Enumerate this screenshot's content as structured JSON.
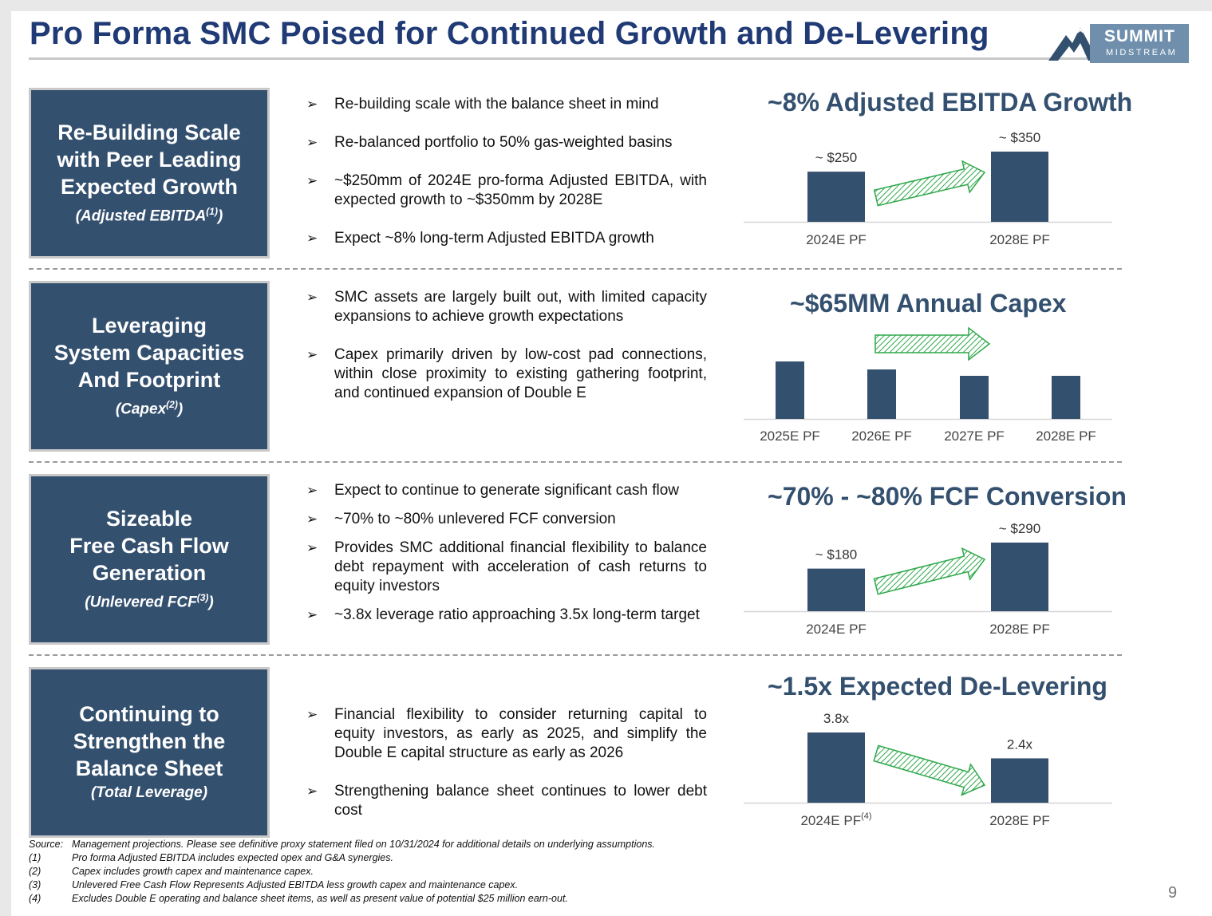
{
  "title": "Pro Forma SMC Poised for Continued Growth and De-Levering",
  "logo": {
    "line1": "SUMMIT",
    "line2": "MIDSTREAM"
  },
  "sections": [
    {
      "label": {
        "lines": [
          "Re-Building Scale",
          "with Peer Leading",
          "Expected Growth"
        ],
        "sub": "(Adjusted EBITDA",
        "sup": "(1)",
        "sub_end": ")"
      },
      "bullets": [
        "Re-building scale with the balance sheet in mind",
        "Re-balanced portfolio to 50% gas-weighted basins",
        "~$250mm of 2024E pro-forma Adjusted EBITDA, with expected growth to ~$350mm by 2028E",
        "Expect ~8% long-term Adjusted EBITDA growth"
      ]
    },
    {
      "label": {
        "lines": [
          "Leveraging",
          "System Capacities",
          "And Footprint"
        ],
        "sub": "(Capex",
        "sup": "(2)",
        "sub_end": ")"
      },
      "bullets": [
        "SMC assets are largely built out, with limited capacity expansions to achieve growth expectations",
        "Capex primarily driven by low-cost pad connections, within close proximity to existing gathering footprint, and continued expansion of Double E"
      ]
    },
    {
      "label": {
        "lines": [
          "Sizeable",
          "Free Cash Flow",
          "Generation"
        ],
        "sub": "(Unlevered FCF",
        "sup": "(3)",
        "sub_end": ")"
      },
      "bullets": [
        "Expect to continue to generate significant cash flow",
        "~70% to ~80% unlevered FCF conversion",
        "Provides SMC additional financial flexibility to balance debt repayment with acceleration of cash returns to equity investors",
        "~3.8x leverage ratio approaching 3.5x long-term target"
      ]
    },
    {
      "label": {
        "lines": [
          "Continuing to",
          "Strengthen the",
          "Balance Sheet"
        ],
        "sub": "(Total Leverage)",
        "sup": "",
        "sub_end": ""
      },
      "bullets": [
        "Financial flexibility to consider returning capital to equity investors, as early as 2025, and simplify the Double E capital structure as early as 2026",
        "Strengthening balance sheet continues to lower debt cost"
      ]
    }
  ],
  "chart_data": [
    {
      "type": "bar",
      "title": "~8% Adjusted EBITDA Growth",
      "categories": [
        "2024E PF",
        "2028E PF"
      ],
      "values": [
        250,
        350
      ],
      "data_labels": [
        "~ $250",
        "~ $350"
      ],
      "arrow_color": "#2ea84a"
    },
    {
      "type": "bar",
      "title": "~$65MM Annual Capex",
      "categories": [
        "2025E PF",
        "2026E PF",
        "2027E PF",
        "2028E PF"
      ],
      "values": [
        72,
        62,
        54,
        54
      ],
      "data_labels": [],
      "arrow_color": "#2ea84a"
    },
    {
      "type": "bar",
      "title": "~70% - ~80% FCF Conversion",
      "categories": [
        "2024E PF",
        "2028E PF"
      ],
      "values": [
        180,
        290
      ],
      "data_labels": [
        "~ $180",
        "~ $290"
      ],
      "arrow_color": "#2ea84a"
    },
    {
      "type": "bar",
      "title": "~1.5x Expected De-Levering",
      "categories": [
        "2024E PF",
        "2028E PF"
      ],
      "category_sups": [
        "(4)",
        ""
      ],
      "values": [
        3.8,
        2.4
      ],
      "data_labels": [
        "3.8x",
        "2.4x"
      ],
      "arrow_color": "#2ea84a"
    }
  ],
  "footnotes": [
    {
      "tag": "Source:",
      "text": "Management projections. Please see definitive proxy statement filed on 10/31/2024 for additional details on underlying assumptions."
    },
    {
      "tag": "(1)",
      "text": "Pro forma Adjusted EBITDA includes expected opex and G&A synergies."
    },
    {
      "tag": "(2)",
      "text": "Capex includes growth capex and maintenance capex."
    },
    {
      "tag": "(3)",
      "text": "Unlevered Free Cash Flow Represents Adjusted EBITDA less growth capex and maintenance capex."
    },
    {
      "tag": "(4)",
      "text": "Excludes Double E operating and balance sheet items, as well as present value of potential $25 million earn-out."
    }
  ],
  "page_number": "9",
  "colors": {
    "bar": "#34506f",
    "title": "#1f3a75",
    "label_bg": "#34506f",
    "arrow": "#2ea84a"
  }
}
